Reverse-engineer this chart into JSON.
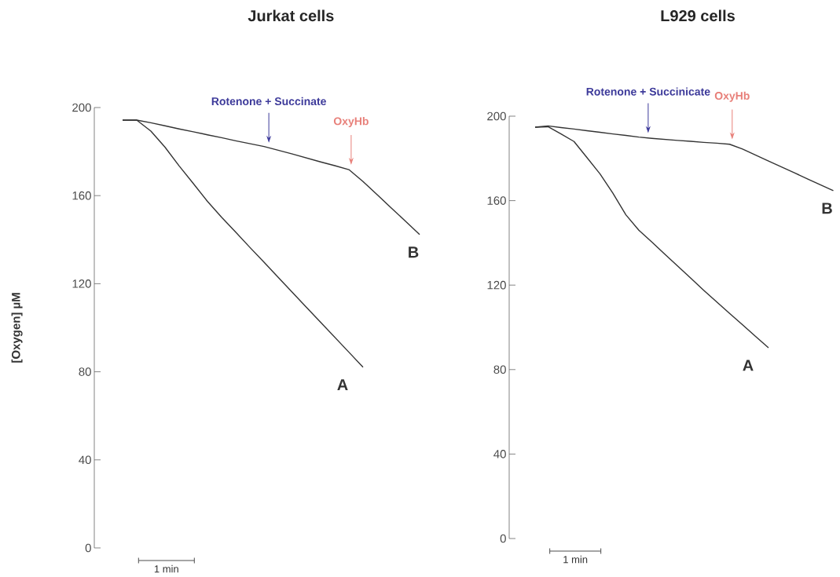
{
  "chart_data": [
    {
      "type": "line",
      "title": "Jurkat cells",
      "ylabel": "[Oxygen] µM",
      "ylim": [
        0,
        200
      ],
      "yticks": [
        0,
        40,
        80,
        120,
        160,
        200
      ],
      "tick_labels": "y",
      "categories": [
        null,
        null,
        null,
        null,
        null,
        null,
        null,
        null,
        null,
        null,
        null,
        null,
        null,
        null,
        null,
        null,
        null,
        null,
        null,
        null,
        null,
        null
      ],
      "series": [
        {
          "name": "A",
          "color": "#333333",
          "values": [
            194.3,
            194.3,
            189.3,
            182.0,
            173.5,
            165.5,
            157.4,
            150.2,
            143.4,
            136.5,
            129.8,
            122.9,
            116.1,
            109.3,
            102.5,
            95.7,
            88.9,
            82.1,
            null,
            null,
            null,
            null
          ]
        },
        {
          "name": "B",
          "color": "#333333",
          "values": [
            194.3,
            194.3,
            193.1,
            191.7,
            190.3,
            189.0,
            187.6,
            186.3,
            184.9,
            183.6,
            182.3,
            180.6,
            178.9,
            177.1,
            175.3,
            173.6,
            171.8,
            166.4,
            160.4,
            154.4,
            148.4,
            142.3
          ]
        }
      ],
      "annotations": [
        "Rotenone + Succinate",
        "OxyHb",
        "1 min"
      ]
    },
    {
      "type": "line",
      "title": "L929 cells",
      "ylim": [
        0,
        200
      ],
      "yticks": [
        0,
        40,
        80,
        120,
        160,
        200
      ],
      "tick_labels": "y",
      "categories": [
        null,
        null,
        null,
        null,
        null,
        null,
        null,
        null,
        null,
        null,
        null,
        null,
        null,
        null,
        null,
        null,
        null,
        null,
        null,
        null,
        null,
        null,
        null,
        null
      ],
      "series": [
        {
          "name": "A",
          "color": "#333333",
          "values": [
            194.8,
            195.0,
            191.6,
            188.0,
            180.4,
            172.7,
            163.5,
            153.3,
            146.0,
            140.4,
            134.7,
            129.0,
            123.3,
            117.6,
            112.1,
            106.6,
            101.2,
            95.7,
            90.3,
            null,
            null,
            null,
            null,
            null
          ]
        },
        {
          "name": "B",
          "color": "#333333",
          "values": [
            194.8,
            195.4,
            194.6,
            193.9,
            193.1,
            192.4,
            191.6,
            190.9,
            190.1,
            189.5,
            189.0,
            188.5,
            188.1,
            187.6,
            187.2,
            186.7,
            184.4,
            181.6,
            178.8,
            176.0,
            173.2,
            170.3,
            167.5,
            164.7
          ]
        }
      ],
      "annotations": [
        "Rotenone + Succinicate",
        "OxyHb",
        "1 min"
      ]
    }
  ]
}
